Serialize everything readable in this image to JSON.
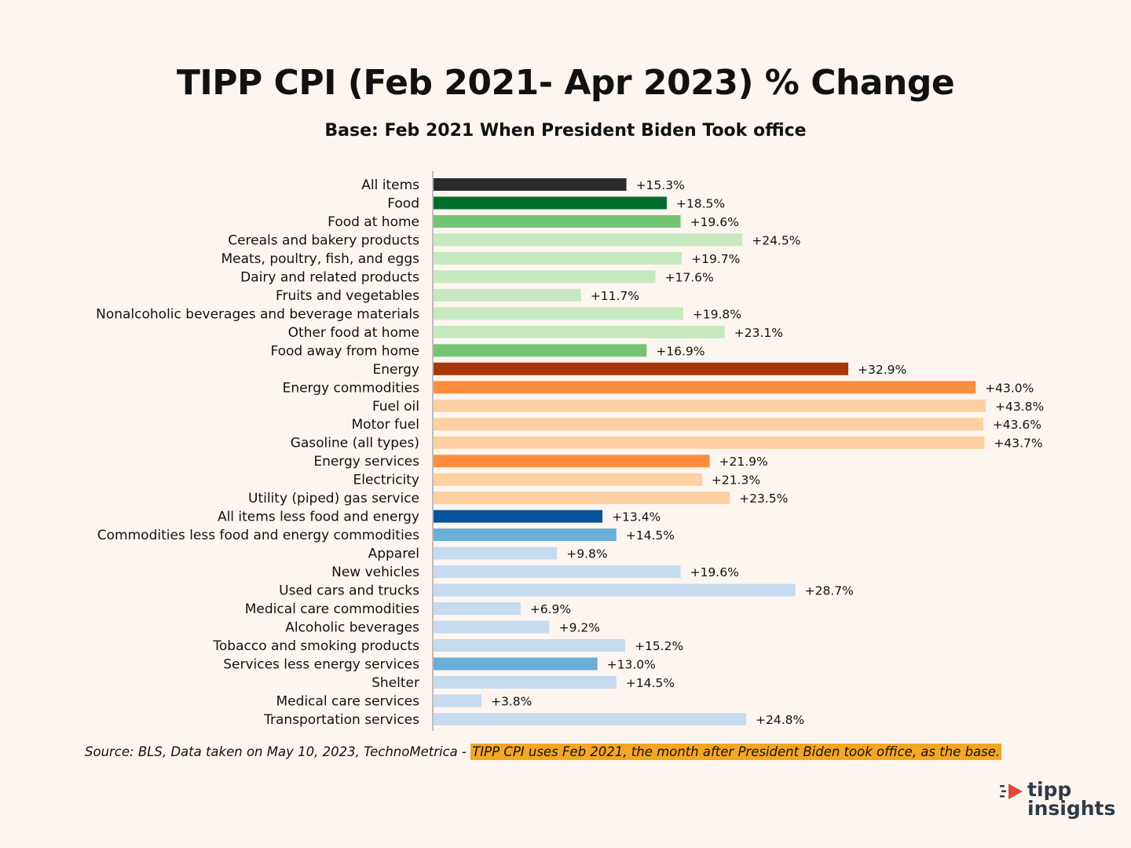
{
  "title": "TIPP CPI (Feb 2021- Apr 2023) % Change",
  "subtitle": "Base: Feb 2021 When President Biden Took office",
  "source": {
    "prefix": "Source:  BLS, Data taken on May 10, 2023, TechnoMetrica - ",
    "note": "TIPP CPI uses Feb 2021, the month after President Biden took office, as the base."
  },
  "logo": {
    "line1": "tipp",
    "line2": "insights"
  },
  "colors": {
    "background": "#fdf6f0",
    "highlight": "#f5a623",
    "logo_red": "#e04a3a"
  },
  "chart_data": {
    "type": "bar",
    "orientation": "horizontal",
    "title": "TIPP CPI (Feb 2021- Apr 2023) % Change",
    "subtitle": "Base: Feb 2021 When President Biden Took office",
    "xlabel": "",
    "ylabel": "",
    "xlim": [
      0,
      45
    ],
    "grid": false,
    "value_unit": "%",
    "categories": [
      "All items",
      "Food",
      "Food at home",
      "Cereals and bakery products",
      "Meats, poultry, fish, and eggs",
      "Dairy and related products",
      "Fruits and vegetables",
      "Nonalcoholic beverages and beverage materials",
      "Other food at home",
      "Food away from home",
      "Energy",
      "Energy commodities",
      "Fuel oil",
      "Motor fuel",
      "Gasoline (all types)",
      "Energy services",
      "Electricity",
      "Utility (piped) gas service",
      "All items less food and energy",
      "Commodities less food and energy commodities",
      "Apparel",
      "New vehicles",
      "Used cars and trucks",
      "Medical care commodities",
      "Alcoholic beverages",
      "Tobacco and smoking products",
      "Services less energy services",
      "Shelter",
      "Medical care services",
      "Transportation services"
    ],
    "values": [
      15.3,
      18.5,
      19.6,
      24.5,
      19.7,
      17.6,
      11.7,
      19.8,
      23.1,
      16.9,
      32.9,
      43.0,
      43.8,
      43.6,
      43.7,
      21.9,
      21.3,
      23.5,
      13.4,
      14.5,
      9.8,
      19.6,
      28.7,
      6.9,
      9.2,
      15.2,
      13.0,
      14.5,
      3.8,
      24.8
    ],
    "value_labels": [
      "+15.3%",
      "+18.5%",
      "+19.6%",
      "+24.5%",
      "+19.7%",
      "+17.6%",
      "+11.7%",
      "+19.8%",
      "+23.1%",
      "+16.9%",
      "+32.9%",
      "+43.0%",
      "+43.8%",
      "+43.6%",
      "+43.7%",
      "+21.9%",
      "+21.3%",
      "+23.5%",
      "+13.4%",
      "+14.5%",
      "+9.8%",
      "+19.6%",
      "+28.7%",
      "+6.9%",
      "+9.2%",
      "+15.2%",
      "+13.0%",
      "+14.5%",
      "+3.8%",
      "+24.8%"
    ],
    "bar_colors": [
      "#2b2b2b",
      "#006d2c",
      "#74c476",
      "#c7e9c0",
      "#c7e9c0",
      "#c7e9c0",
      "#c7e9c0",
      "#c7e9c0",
      "#c7e9c0",
      "#74c476",
      "#a63603",
      "#fd8d3c",
      "#fdd0a2",
      "#fdd0a2",
      "#fdd0a2",
      "#fd8d3c",
      "#fdd0a2",
      "#fdd0a2",
      "#08519c",
      "#6baed6",
      "#c6dbef",
      "#c6dbef",
      "#c6dbef",
      "#c6dbef",
      "#c6dbef",
      "#c6dbef",
      "#6baed6",
      "#c6dbef",
      "#c6dbef",
      "#c6dbef"
    ]
  }
}
